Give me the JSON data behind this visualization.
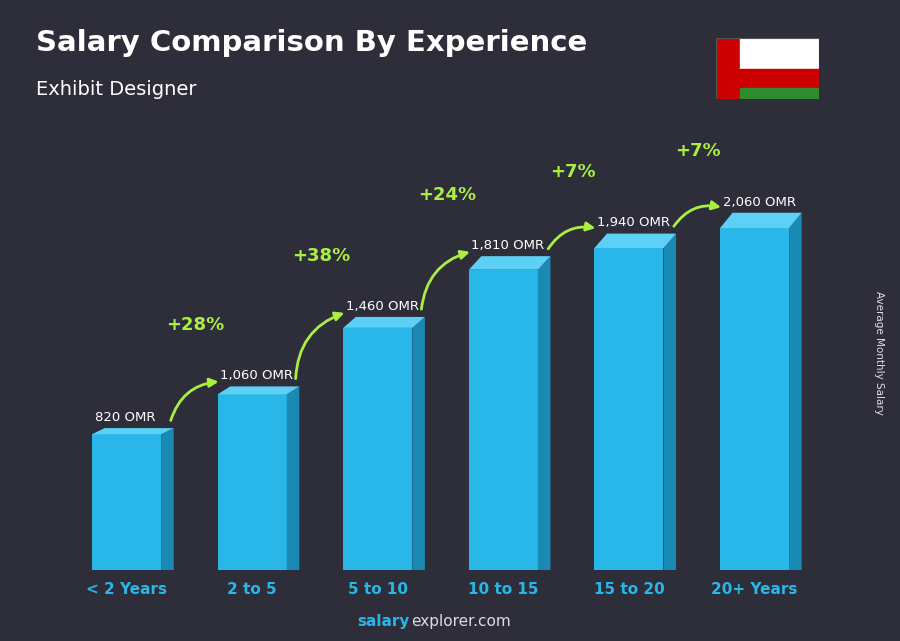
{
  "title": "Salary Comparison By Experience",
  "subtitle": "Exhibit Designer",
  "categories": [
    "< 2 Years",
    "2 to 5",
    "5 to 10",
    "10 to 15",
    "15 to 20",
    "20+ Years"
  ],
  "values": [
    820,
    1060,
    1460,
    1810,
    1940,
    2060
  ],
  "labels": [
    "820 OMR",
    "1,060 OMR",
    "1,460 OMR",
    "1,810 OMR",
    "1,940 OMR",
    "2,060 OMR"
  ],
  "pct_changes": [
    "+28%",
    "+38%",
    "+24%",
    "+7%",
    "+7%"
  ],
  "bar_color_face": "#29b6e8",
  "bar_color_side": "#1a8ab5",
  "bar_color_top": "#5dd0f5",
  "bg_color": "#2e2e3a",
  "title_color": "#ffffff",
  "subtitle_color": "#ffffff",
  "label_color": "#ffffff",
  "pct_color": "#aaee44",
  "xlabel_color": "#29b6e8",
  "ylabel": "Average Monthly Salary",
  "watermark_bold": "salary",
  "watermark_rest": "explorer.com",
  "ylim": [
    0,
    2700
  ]
}
